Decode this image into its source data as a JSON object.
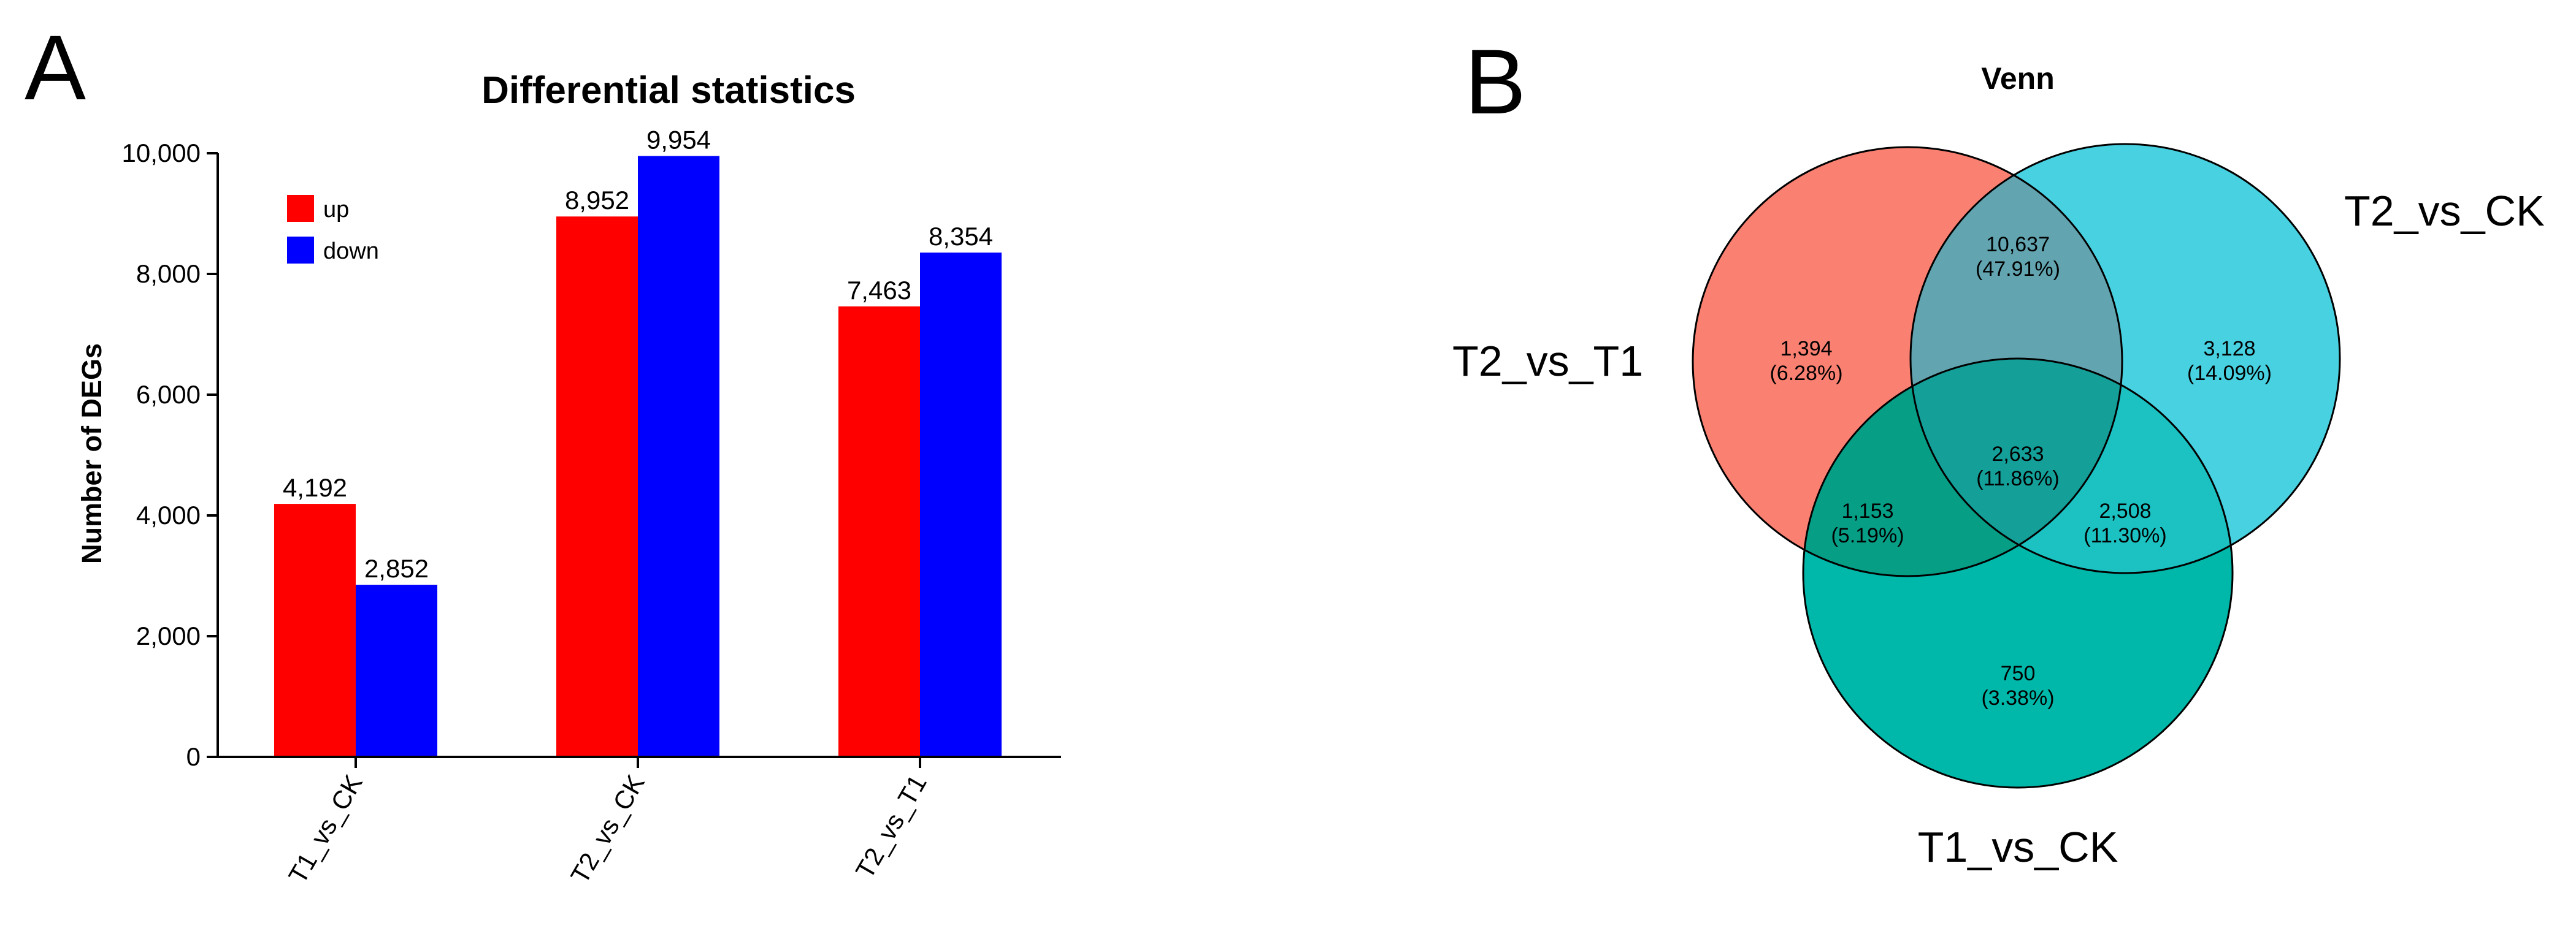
{
  "panels": {
    "a": "A",
    "b": "B"
  },
  "chart_data": [
    {
      "type": "bar",
      "title": "Differential statistics",
      "xlabel": "",
      "ylabel": "Number of DEGs",
      "categories": [
        "T1_vs_CK",
        "T2_vs_CK",
        "T2_vs_T1"
      ],
      "series": [
        {
          "name": "up",
          "color": "#ff0000",
          "values": [
            4192,
            8952,
            7463
          ],
          "labels": [
            "4,192",
            "8,952",
            "7,463"
          ]
        },
        {
          "name": "down",
          "color": "#0000ff",
          "values": [
            2852,
            9954,
            8354
          ],
          "labels": [
            "2,852",
            "9,954",
            "8,354"
          ]
        }
      ],
      "ylim": [
        0,
        10000
      ],
      "yticks": [
        0,
        2000,
        4000,
        6000,
        8000,
        10000
      ],
      "ytick_labels": [
        "0",
        "2,000",
        "4,000",
        "6,000",
        "8,000",
        "10,000"
      ],
      "legend_position": "top-left"
    },
    {
      "type": "venn",
      "title": "Venn",
      "sets": [
        {
          "name": "T2_vs_T1",
          "color": "#fa8072"
        },
        {
          "name": "T2_vs_CK",
          "color": "#48d1e0"
        },
        {
          "name": "T1_vs_CK",
          "color": "#00b8a9"
        }
      ],
      "regions": [
        {
          "sets": [
            "T2_vs_T1"
          ],
          "count": "1,394",
          "percent": "(6.28%)"
        },
        {
          "sets": [
            "T2_vs_CK"
          ],
          "count": "3,128",
          "percent": "(14.09%)"
        },
        {
          "sets": [
            "T1_vs_CK"
          ],
          "count": "750",
          "percent": "(3.38%)"
        },
        {
          "sets": [
            "T2_vs_T1",
            "T2_vs_CK"
          ],
          "count": "10,637",
          "percent": "(47.91%)"
        },
        {
          "sets": [
            "T2_vs_T1",
            "T1_vs_CK"
          ],
          "count": "1,153",
          "percent": "(5.19%)"
        },
        {
          "sets": [
            "T2_vs_CK",
            "T1_vs_CK"
          ],
          "count": "2,508",
          "percent": "(11.30%)"
        },
        {
          "sets": [
            "T2_vs_T1",
            "T2_vs_CK",
            "T1_vs_CK"
          ],
          "count": "2,633",
          "percent": "(11.86%)"
        }
      ]
    }
  ]
}
